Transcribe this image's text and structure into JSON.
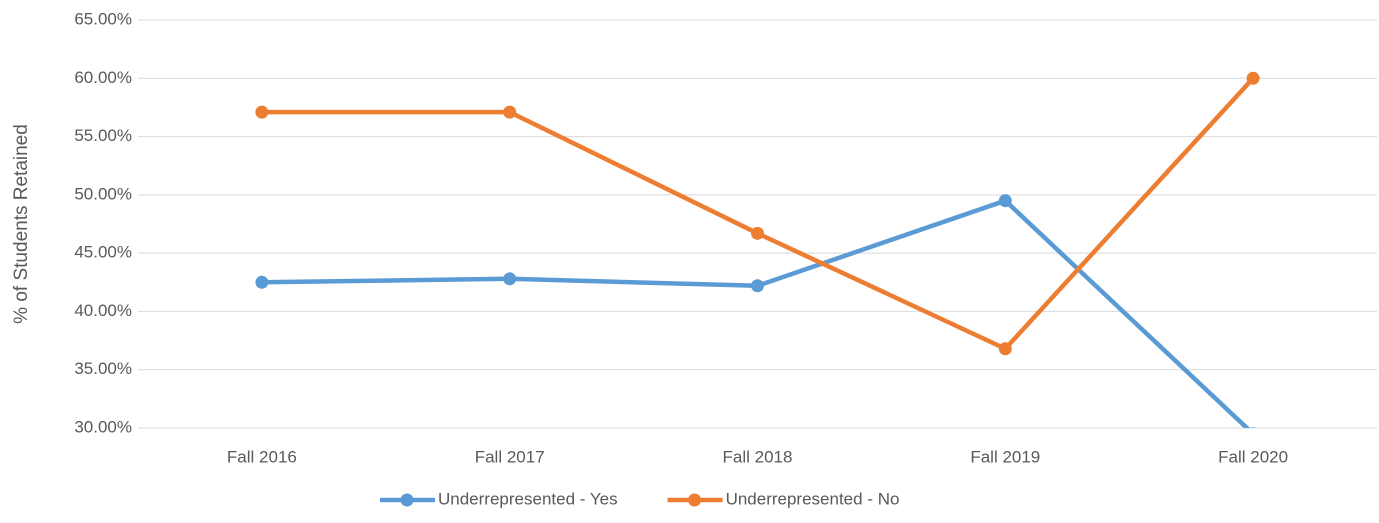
{
  "chart_data": {
    "type": "line",
    "y_label": "% of Students Retained",
    "categories": [
      "Fall 2016",
      "Fall 2017",
      "Fall 2018",
      "Fall 2019",
      "Fall 2020"
    ],
    "series": [
      {
        "name": "Underrepresented - Yes",
        "color": "#5b9bd5",
        "values": [
          42.5,
          42.8,
          42.2,
          49.5,
          29.5
        ]
      },
      {
        "name": "Underrepresented - No",
        "color": "#ed7d31",
        "values": [
          57.1,
          57.1,
          46.7,
          36.8,
          60.0
        ]
      }
    ],
    "ylim": [
      30,
      65
    ],
    "yticks": [
      {
        "value": 30,
        "label": "30.00%"
      },
      {
        "value": 35,
        "label": "35.00%"
      },
      {
        "value": 40,
        "label": "40.00%"
      },
      {
        "value": 45,
        "label": "45.00%"
      },
      {
        "value": 50,
        "label": "50.00%"
      },
      {
        "value": 55,
        "label": "55.00%"
      },
      {
        "value": 60,
        "label": "60.00%"
      },
      {
        "value": 65,
        "label": "65.00%"
      }
    ],
    "grid": true,
    "legend": "bottom"
  }
}
